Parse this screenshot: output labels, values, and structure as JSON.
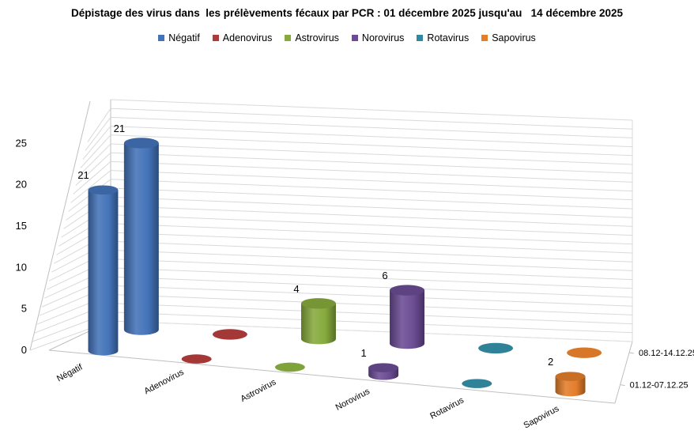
{
  "chart_data": {
    "type": "bar",
    "subtype": "3d-cylinder",
    "title": "Dépistage des virus dans  les prélèvements fécaux par PCR : 01 décembre 2025 jusqu'au   14 décembre 2025",
    "categories": [
      "Négatif",
      "Adenovirus",
      "Astrovirus",
      "Norovirus",
      "Rotavirus",
      "Sapovirus"
    ],
    "depth_labels": [
      "01.12-07.12.25",
      "08.12-14.12.25"
    ],
    "series": [
      {
        "name": "01.12-07.12.25",
        "values": [
          21,
          0,
          0,
          1,
          0,
          2
        ]
      },
      {
        "name": "08.12-14.12.25",
        "values": [
          21,
          0,
          4,
          6,
          0,
          0
        ]
      }
    ],
    "data_labels": {
      "01.12-07.12.25": [
        "21",
        "",
        "",
        "1",
        "",
        "2"
      ],
      "08.12-14.12.25": [
        "21",
        "",
        "4",
        "6",
        "",
        ""
      ]
    },
    "legend": [
      "Négatif",
      "Adenovirus",
      "Astrovirus",
      "Norovirus",
      "Rotavirus",
      "Sapovirus"
    ],
    "legend_position": "top",
    "colors": [
      "#4473b9",
      "#ad3b3a",
      "#86aa3d",
      "#6b4c94",
      "#31899f",
      "#e37d2a"
    ],
    "ylim": [
      0,
      25
    ],
    "yticks": [
      "0",
      "5",
      "10",
      "15",
      "20",
      "25"
    ],
    "grid": true
  }
}
